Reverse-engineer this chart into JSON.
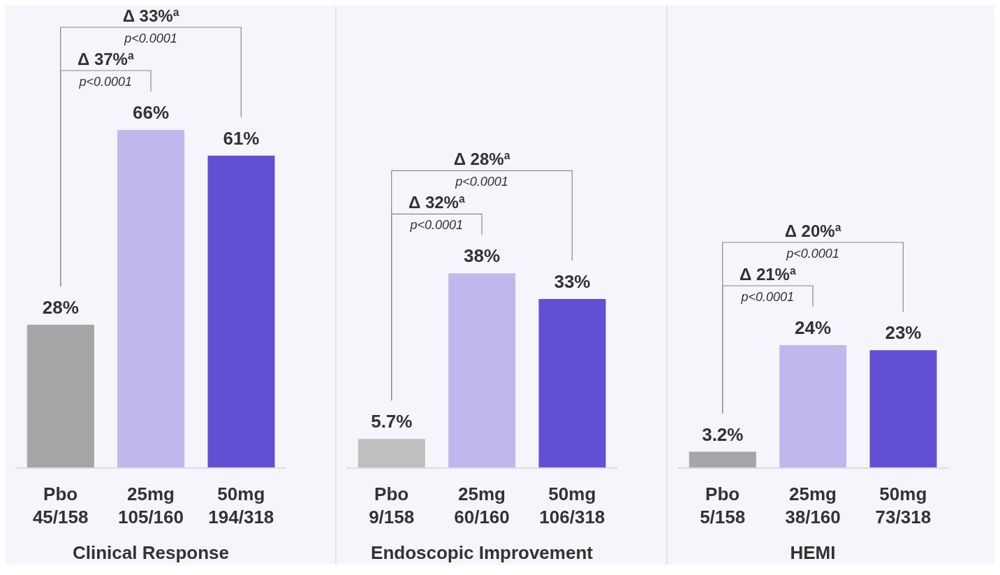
{
  "chart_data": [
    {
      "type": "bar",
      "xlabel": "Clinical Response",
      "categories": [
        "Pbo\n45/158",
        "25mg\n105/160",
        "50mg\n194/318"
      ],
      "values": [
        28,
        66,
        61
      ],
      "colors": [
        "#a6a6a6",
        "#c0b8ec",
        "#614fd4"
      ],
      "value_labels": [
        "28%",
        "66%",
        "61%"
      ],
      "tick_labels": "x",
      "grid": false,
      "legend": false,
      "annotations": [
        "Δ 33%$^{a}$",
        "p<0.0001",
        "Δ 37%$^{a}$",
        "p<0.0001"
      ]
    },
    {
      "type": "bar",
      "xlabel": "Endoscopic Improvement",
      "categories": [
        "Pbo\n9/158",
        "25mg\n60/160",
        "50mg\n106/318"
      ],
      "values": [
        5.7,
        38,
        33
      ],
      "colors": [
        "#bfbfbf",
        "#c0b8ec",
        "#614fd4"
      ],
      "value_labels": [
        "5.7%",
        "38%",
        "33%"
      ],
      "tick_labels": "x",
      "grid": false,
      "legend": false,
      "annotations": [
        "Δ 28%$^{a}$",
        "p<0.0001",
        "Δ 32%$^{a}$",
        "p<0.0001"
      ]
    },
    {
      "type": "bar",
      "xlabel": "HEMI",
      "categories": [
        "Pbo\n5/158",
        "25mg\n38/160",
        "50mg\n73/318"
      ],
      "values": [
        3.2,
        24,
        23
      ],
      "colors": [
        "#a6a6a6",
        "#c0b8ec",
        "#614fd4"
      ],
      "value_labels": [
        "3.2%",
        "24%",
        "23%"
      ],
      "tick_labels": "x",
      "grid": false,
      "legend": false,
      "annotations": [
        "Δ 20%$^{a}$",
        "p<0.0001",
        "Δ 21%$^{a}$",
        "p<0.0001"
      ]
    }
  ]
}
